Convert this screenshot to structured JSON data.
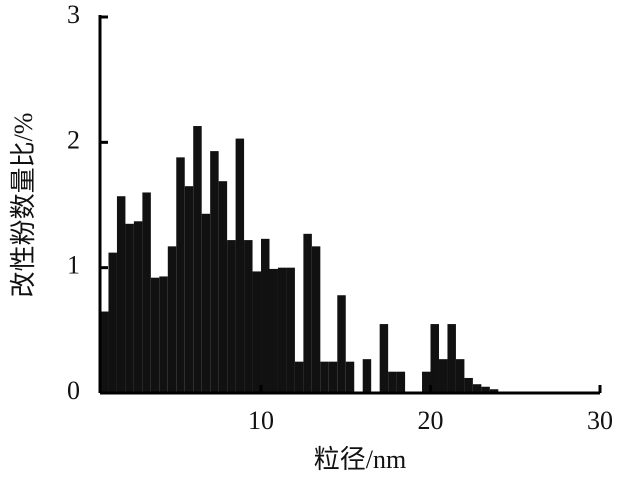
{
  "chart_data": {
    "type": "histogram",
    "x_label": "粒径/nm",
    "y_label": "改性粉数量比/%",
    "bins": [
      0.5,
      1,
      1.5,
      2,
      2.5,
      3,
      3.5,
      4,
      4.5,
      5,
      5.5,
      6,
      6.5,
      7,
      7.5,
      8,
      8.5,
      9,
      9.5,
      10,
      10.5,
      11,
      11.5,
      12,
      12.5,
      13,
      13.5,
      14,
      14.5,
      15,
      15.5,
      16,
      16.5,
      17,
      17.5,
      18,
      18.5,
      19,
      19.5,
      20,
      20.5,
      21,
      21.5,
      22,
      22.5,
      23,
      23.5,
      24,
      24.5,
      25
    ],
    "values": [
      0.65,
      1.12,
      1.57,
      1.35,
      1.37,
      1.6,
      0.92,
      0.93,
      1.17,
      1.88,
      1.65,
      2.13,
      1.43,
      1.93,
      1.69,
      1.22,
      2.03,
      1.22,
      0.97,
      1.23,
      0.99,
      1.0,
      1.0,
      0.25,
      1.27,
      1.17,
      0.25,
      0.25,
      0.78,
      0.25,
      0,
      0.27,
      0,
      0.55,
      0.17,
      0.17,
      0,
      0,
      0.17,
      0.55,
      0.27,
      0.55,
      0.27,
      0.12,
      0.07,
      0.05,
      0.03,
      0,
      0
    ],
    "color": "#111111",
    "xlim": [
      0.5,
      30
    ],
    "xticks": [
      10,
      20,
      30
    ],
    "ylim": [
      0,
      3
    ],
    "yticks": [
      0,
      1,
      2,
      3
    ]
  }
}
